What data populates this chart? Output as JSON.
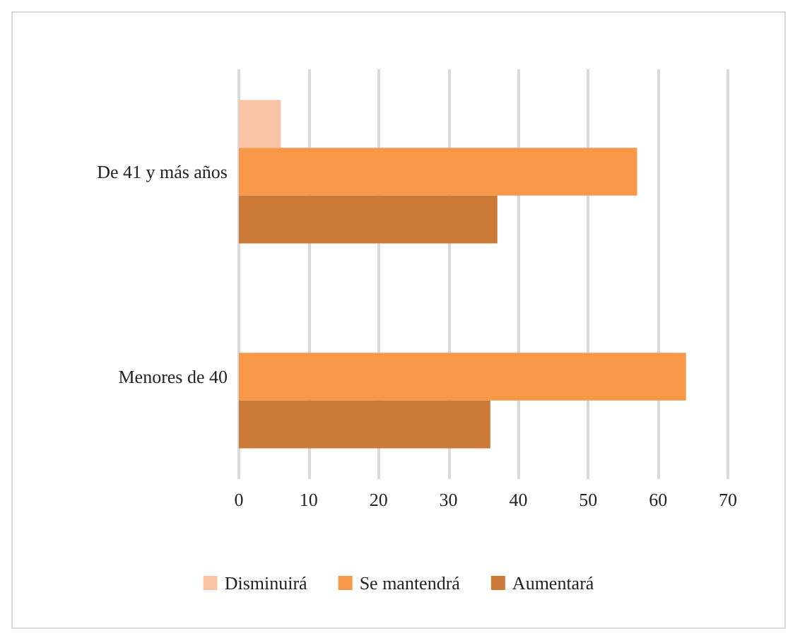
{
  "chart_data": {
    "type": "bar",
    "orientation": "horizontal",
    "categories": [
      "De 41 y más años",
      "Menores de 40"
    ],
    "series": [
      {
        "name": "Disminuirá",
        "color": "#f9c3a6",
        "values": [
          6,
          0
        ]
      },
      {
        "name": "Se mantendrá",
        "color": "#f79848",
        "values": [
          57,
          64
        ]
      },
      {
        "name": "Aumentará",
        "color": "#cc7a38",
        "values": [
          37,
          36
        ]
      }
    ],
    "xlim": [
      0,
      70
    ],
    "xticks": [
      0,
      10,
      20,
      30,
      40,
      50,
      60,
      70
    ],
    "grid": "x",
    "legend": "bottom"
  }
}
